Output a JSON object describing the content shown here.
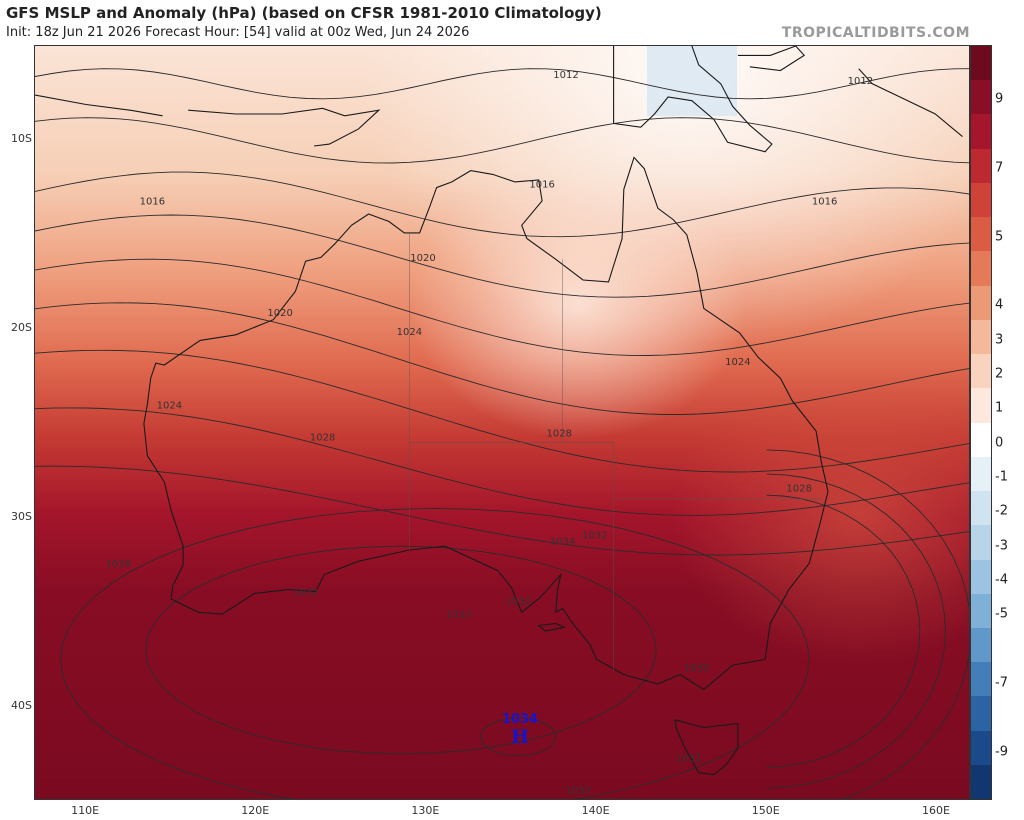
{
  "header": {
    "title": "GFS MSLP and Anomaly (hPa) (based on CFSR 1981-2010 Climatology)",
    "subtitle": "Init: 18z Jun 21 2026   Forecast Hour: [54]   valid at 00z Wed, Jun 24 2026",
    "watermark": "TROPICALTIDBITS.COM"
  },
  "map": {
    "lat_labels": [
      "10S",
      "20S",
      "30S",
      "40S"
    ],
    "lon_labels": [
      "110E",
      "120E",
      "130E",
      "140E",
      "150E",
      "160E"
    ],
    "isobar_labels": [
      {
        "text": "1012",
        "lon": 138.2,
        "lat": -6.7
      },
      {
        "text": "1012",
        "lon": 155.5,
        "lat": -7.0
      },
      {
        "text": "1016",
        "lon": 113.9,
        "lat": -13.4
      },
      {
        "text": "1016",
        "lon": 136.8,
        "lat": -12.5
      },
      {
        "text": "1016",
        "lon": 153.4,
        "lat": -13.4
      },
      {
        "text": "1020",
        "lon": 129.8,
        "lat": -16.4
      },
      {
        "text": "1020",
        "lon": 121.4,
        "lat": -19.3
      },
      {
        "text": "1024",
        "lon": 129.0,
        "lat": -20.3
      },
      {
        "text": "1024",
        "lon": 114.9,
        "lat": -24.2
      },
      {
        "text": "1024",
        "lon": 148.3,
        "lat": -21.9
      },
      {
        "text": "1028",
        "lon": 123.9,
        "lat": -25.9
      },
      {
        "text": "1028",
        "lon": 137.8,
        "lat": -25.7
      },
      {
        "text": "1028",
        "lon": 151.9,
        "lat": -28.6
      },
      {
        "text": "1028",
        "lon": 111.9,
        "lat": -32.6
      },
      {
        "text": "1032",
        "lon": 139.9,
        "lat": -31.1
      },
      {
        "text": "1032",
        "lon": 122.9,
        "lat": -34.1
      },
      {
        "text": "1032",
        "lon": 135.4,
        "lat": -34.6
      },
      {
        "text": "1032",
        "lon": 131.9,
        "lat": -35.3
      },
      {
        "text": "1032",
        "lon": 145.9,
        "lat": -38.1
      },
      {
        "text": "1032",
        "lon": 145.4,
        "lat": -42.9
      },
      {
        "text": "1032",
        "lon": 138.9,
        "lat": -44.6
      },
      {
        "text": "1034",
        "lon": 138.0,
        "lat": -31.4
      }
    ],
    "high_center": {
      "letter": "H",
      "value": "1034",
      "lon": 135.5,
      "lat": -41.5
    },
    "colors": {
      "land_outline": "#1a1a1a",
      "isobar": "#2b2b2b",
      "high_marker": "#1515d0"
    }
  },
  "colorbar": {
    "labels": [
      "9",
      "7",
      "5",
      "4",
      "3",
      "2",
      "1",
      "0",
      "-1",
      "-2",
      "-3",
      "-4",
      "-5",
      "-7",
      "-9"
    ],
    "colors_top_to_bottom": [
      "#6e0a1e",
      "#8a0e26",
      "#a5152b",
      "#bd2831",
      "#ce4238",
      "#da5c43",
      "#e47a57",
      "#ec9a76",
      "#f3b99a",
      "#f8d3bd",
      "#fce8dc",
      "#ffffff",
      "#e6f0f7",
      "#d0e3f0",
      "#b7d4e9",
      "#9cc4e2",
      "#7fb1d8",
      "#5f98c9",
      "#447eb9",
      "#2c63a4",
      "#1b4a8a",
      "#123670"
    ]
  }
}
